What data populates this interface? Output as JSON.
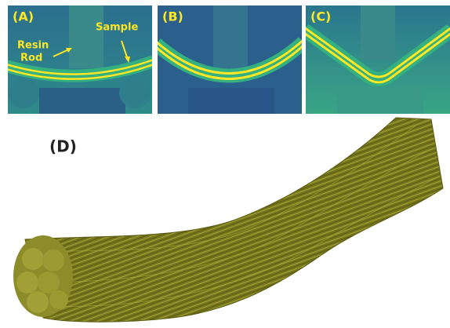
{
  "panels": [
    {
      "label": "(A)",
      "annotations": {
        "resin_rod": [
          "Resin",
          "Rod"
        ],
        "sample": "Sample"
      }
    },
    {
      "label": "(B)"
    },
    {
      "label": "(C)"
    },
    {
      "label": "(D)"
    }
  ]
}
